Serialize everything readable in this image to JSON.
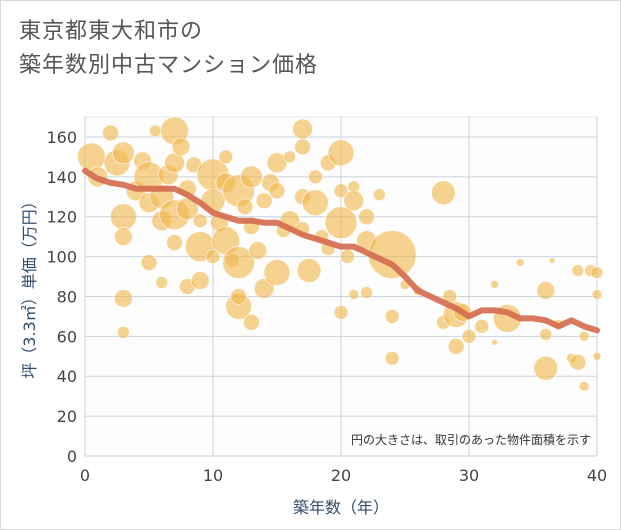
{
  "title": "東京都東大和市の\n築年数別中古マンション価格",
  "chart_data": {
    "type": "scatter",
    "xlabel": "築年数（年）",
    "ylabel": "坪（3.3㎡）単価（万円）",
    "xlim": [
      0,
      40
    ],
    "ylim": [
      0,
      170
    ],
    "xticks": [
      "0",
      "10",
      "20",
      "30",
      "40"
    ],
    "yticks": [
      "0",
      "20",
      "40",
      "60",
      "80",
      "100",
      "120",
      "140",
      "160"
    ],
    "annotation": "円の大きさは、取引のあった物件面積を示す",
    "grid": true,
    "colors": {
      "bubble": "#f2b54a",
      "line": "#d46a4e"
    },
    "bubbles": [
      [
        0.5,
        150,
        14
      ],
      [
        1,
        140,
        10
      ],
      [
        2,
        162,
        8
      ],
      [
        2.5,
        147,
        13
      ],
      [
        3,
        152,
        11
      ],
      [
        3,
        120,
        13
      ],
      [
        3,
        110,
        9
      ],
      [
        3,
        79,
        9
      ],
      [
        3,
        62,
        6
      ],
      [
        4,
        133,
        10
      ],
      [
        4.5,
        148,
        9
      ],
      [
        5,
        140,
        15
      ],
      [
        5,
        127,
        10
      ],
      [
        5,
        97,
        8
      ],
      [
        5.5,
        163,
        6
      ],
      [
        6,
        130,
        12
      ],
      [
        6,
        118,
        10
      ],
      [
        6,
        87,
        6
      ],
      [
        6.5,
        141,
        10
      ],
      [
        7,
        163,
        14
      ],
      [
        7,
        147,
        10
      ],
      [
        7,
        121,
        15
      ],
      [
        7,
        107,
        8
      ],
      [
        7.5,
        155,
        9
      ],
      [
        8,
        134,
        9
      ],
      [
        8,
        124,
        11
      ],
      [
        8,
        85,
        8
      ],
      [
        8.5,
        146,
        8
      ],
      [
        9,
        105,
        15
      ],
      [
        9,
        118,
        7
      ],
      [
        9,
        88,
        9
      ],
      [
        10,
        141,
        16
      ],
      [
        10,
        128,
        12
      ],
      [
        10,
        100,
        7
      ],
      [
        10.5,
        117,
        9
      ],
      [
        11,
        137,
        10
      ],
      [
        11,
        108,
        14
      ],
      [
        11,
        150,
        7
      ],
      [
        11.5,
        98,
        7
      ],
      [
        12,
        133,
        16
      ],
      [
        12,
        97,
        16
      ],
      [
        12,
        75,
        13
      ],
      [
        12,
        80,
        8
      ],
      [
        12.5,
        125,
        8
      ],
      [
        13,
        140,
        11
      ],
      [
        13,
        115,
        8
      ],
      [
        13,
        67,
        8
      ],
      [
        13.5,
        103,
        9
      ],
      [
        14,
        128,
        8
      ],
      [
        14,
        84,
        10
      ],
      [
        14.5,
        137,
        9
      ],
      [
        15,
        147,
        10
      ],
      [
        15,
        92,
        13
      ],
      [
        15,
        133,
        8
      ],
      [
        15.5,
        113,
        7
      ],
      [
        16,
        150,
        6
      ],
      [
        16,
        118,
        10
      ],
      [
        17,
        164,
        10
      ],
      [
        17,
        155,
        8
      ],
      [
        17,
        130,
        8
      ],
      [
        17,
        114,
        7
      ],
      [
        17.5,
        93,
        12
      ],
      [
        18,
        140,
        7
      ],
      [
        18,
        127,
        13
      ],
      [
        18.5,
        110,
        7
      ],
      [
        19,
        147,
        8
      ],
      [
        19,
        104,
        7
      ],
      [
        20,
        152,
        13
      ],
      [
        20,
        133,
        7
      ],
      [
        20,
        117,
        16
      ],
      [
        20,
        72,
        7
      ],
      [
        20.5,
        100,
        7
      ],
      [
        21,
        135,
        6
      ],
      [
        21,
        128,
        10
      ],
      [
        21,
        81,
        5
      ],
      [
        22,
        120,
        8
      ],
      [
        22,
        108,
        10
      ],
      [
        22,
        82,
        6
      ],
      [
        23,
        131,
        6
      ],
      [
        24,
        101,
        24
      ],
      [
        24,
        70,
        7
      ],
      [
        24,
        49,
        7
      ],
      [
        25,
        86,
        5
      ],
      [
        26,
        83,
        5
      ],
      [
        28,
        132,
        12
      ],
      [
        28,
        67,
        7
      ],
      [
        28.5,
        80,
        7
      ],
      [
        29,
        71,
        13
      ],
      [
        29,
        55,
        8
      ],
      [
        29.5,
        72,
        9
      ],
      [
        30,
        60,
        7
      ],
      [
        31,
        65,
        7
      ],
      [
        32,
        86,
        4
      ],
      [
        32,
        57,
        3
      ],
      [
        33,
        69,
        14
      ],
      [
        34,
        97,
        4
      ],
      [
        36,
        83,
        9
      ],
      [
        36,
        61,
        6
      ],
      [
        36,
        44,
        12
      ],
      [
        36.5,
        98,
        3
      ],
      [
        37,
        66,
        5
      ],
      [
        38,
        49,
        5
      ],
      [
        38.5,
        93,
        6
      ],
      [
        38.5,
        47,
        8
      ],
      [
        39,
        60,
        5
      ],
      [
        39,
        35,
        5
      ],
      [
        39.5,
        93,
        6
      ],
      [
        40,
        92,
        6
      ],
      [
        40,
        81,
        5
      ],
      [
        40,
        50,
        4
      ]
    ],
    "trend": [
      [
        0,
        143
      ],
      [
        1,
        139
      ],
      [
        2,
        137
      ],
      [
        3,
        136
      ],
      [
        4,
        134
      ],
      [
        5,
        134
      ],
      [
        6,
        134
      ],
      [
        7,
        134
      ],
      [
        8,
        131
      ],
      [
        9,
        127
      ],
      [
        10,
        122
      ],
      [
        11,
        120
      ],
      [
        12,
        118
      ],
      [
        13,
        118
      ],
      [
        14,
        117
      ],
      [
        15,
        117
      ],
      [
        16,
        114
      ],
      [
        17,
        111
      ],
      [
        18,
        109
      ],
      [
        19,
        107
      ],
      [
        20,
        105
      ],
      [
        21,
        105
      ],
      [
        22,
        102
      ],
      [
        23,
        99
      ],
      [
        24,
        96
      ],
      [
        25,
        90
      ],
      [
        26,
        83
      ],
      [
        27,
        80
      ],
      [
        28,
        77
      ],
      [
        29,
        74
      ],
      [
        30,
        70
      ],
      [
        31,
        73
      ],
      [
        32,
        73
      ],
      [
        33,
        72
      ],
      [
        34,
        69
      ],
      [
        35,
        69
      ],
      [
        36,
        68
      ],
      [
        37,
        65
      ],
      [
        38,
        68
      ],
      [
        39,
        65
      ],
      [
        40,
        63
      ]
    ]
  }
}
